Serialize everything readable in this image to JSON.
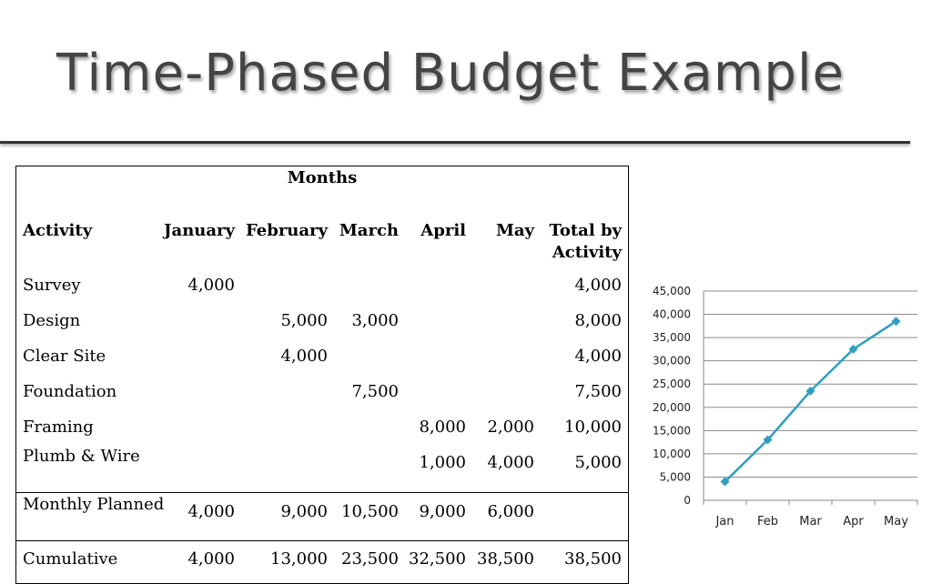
{
  "slide": {
    "title": "Time-Phased Budget Example"
  },
  "table": {
    "group_header": "Months",
    "headers": {
      "activity": "Activity",
      "months": [
        "January",
        "February",
        "March",
        "April",
        "May"
      ],
      "total_line1": "Total by",
      "total_line2": "Activity"
    },
    "rows": [
      {
        "activity": "Survey",
        "cells": [
          "4,000",
          "",
          "",
          "",
          ""
        ],
        "total": "4,000"
      },
      {
        "activity": "Design",
        "cells": [
          "",
          "5,000",
          "3,000",
          "",
          ""
        ],
        "total": "8,000"
      },
      {
        "activity": "Clear Site",
        "cells": [
          "",
          "4,000",
          "",
          "",
          ""
        ],
        "total": "4,000"
      },
      {
        "activity": "Foundation",
        "cells": [
          "",
          "",
          "7,500",
          "",
          ""
        ],
        "total": "7,500"
      },
      {
        "activity": "Framing",
        "cells": [
          "",
          "",
          "",
          "8,000",
          "2,000"
        ],
        "total": "10,000"
      },
      {
        "activity": "Plumb & Wire",
        "cells": [
          "",
          "",
          "",
          "1,000",
          "4,000"
        ],
        "total": "5,000"
      }
    ],
    "monthly": {
      "label": "Monthly Planned",
      "cells": [
        "4,000",
        "9,000",
        "10,500",
        "9,000",
        "6,000"
      ],
      "total": ""
    },
    "cumulative": {
      "label": "Cumulative",
      "cells": [
        "4,000",
        "13,000",
        "23,500",
        "32,500",
        "38,500"
      ],
      "total": "38,500"
    }
  },
  "chart_data": {
    "type": "line",
    "categories": [
      "Jan",
      "Feb",
      "Mar",
      "Apr",
      "May"
    ],
    "series": [
      {
        "values": [
          4000,
          13000,
          23500,
          32500,
          38500
        ]
      }
    ],
    "ylim": [
      0,
      45000
    ],
    "yticks": [
      "0",
      "5,000",
      "10,000",
      "15,000",
      "20,000",
      "25,000",
      "30,000",
      "35,000",
      "40,000",
      "45,000"
    ],
    "grid": true,
    "line_color": "#2e9fbf"
  }
}
